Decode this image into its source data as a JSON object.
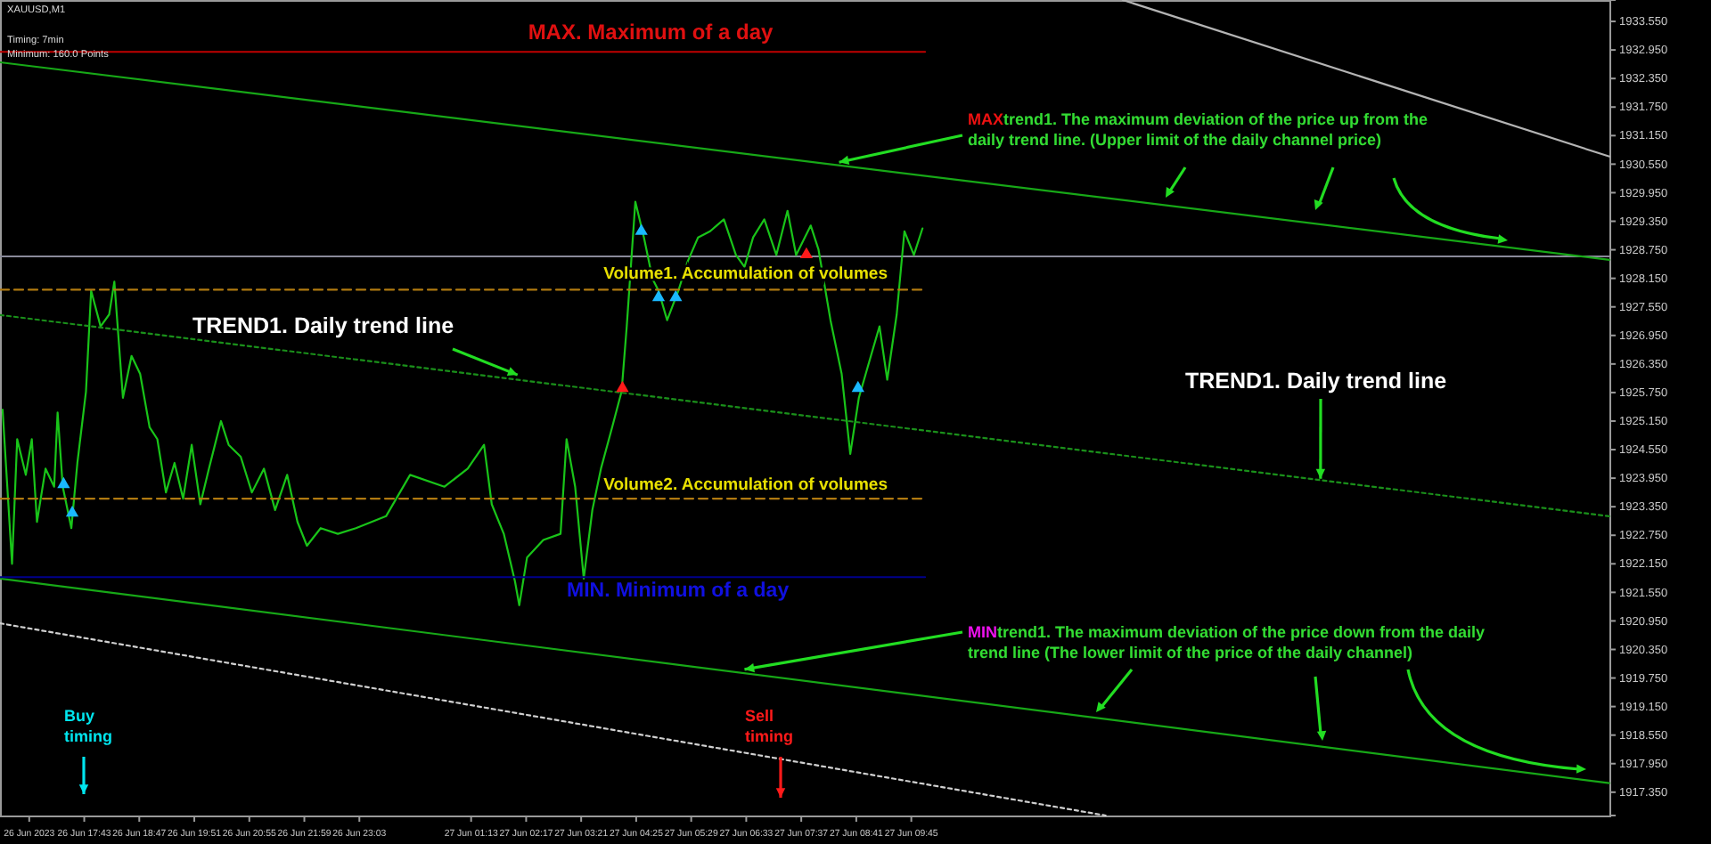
{
  "chart_data": {
    "type": "line",
    "legend": false,
    "grid": false,
    "marker": "none",
    "xlim": [
      "2023-06-26T16:05",
      "2023-06-27T23:17"
    ],
    "ylim": [
      1916.86,
      1934.0
    ],
    "xticks": [
      {
        "value": "2023-06-26T16:39",
        "label": "26 Jun 2023"
      },
      {
        "value": "2023-06-26T17:43",
        "label": "26 Jun 17:43"
      },
      {
        "value": "2023-06-26T18:47",
        "label": "26 Jun 18:47"
      },
      {
        "value": "2023-06-26T19:51",
        "label": "26 Jun 19:51"
      },
      {
        "value": "2023-06-26T20:55",
        "label": "26 Jun 20:55"
      },
      {
        "value": "2023-06-26T21:59",
        "label": "26 Jun 21:59"
      },
      {
        "value": "2023-06-26T23:03",
        "label": "26 Jun 23:03"
      },
      {
        "value": "2023-06-27T01:13",
        "label": "27 Jun 01:13"
      },
      {
        "value": "2023-06-27T02:17",
        "label": "27 Jun 02:17"
      },
      {
        "value": "2023-06-27T03:21",
        "label": "27 Jun 03:21"
      },
      {
        "value": "2023-06-27T04:25",
        "label": "27 Jun 04:25"
      },
      {
        "value": "2023-06-27T05:29",
        "label": "27 Jun 05:29"
      },
      {
        "value": "2023-06-27T06:33",
        "label": "27 Jun 06:33"
      },
      {
        "value": "2023-06-27T07:37",
        "label": "27 Jun 07:37"
      },
      {
        "value": "2023-06-27T08:41",
        "label": "27 Jun 08:41"
      },
      {
        "value": "2023-06-27T09:45",
        "label": "27 Jun 09:45"
      }
    ],
    "yticks": [
      {
        "value": 1933.55,
        "label": "1933.550"
      },
      {
        "value": 1932.95,
        "label": "1932.950"
      },
      {
        "value": 1932.35,
        "label": "1932.350"
      },
      {
        "value": 1931.75,
        "label": "1931.750"
      },
      {
        "value": 1931.15,
        "label": "1931.150"
      },
      {
        "value": 1930.55,
        "label": "1930.550"
      },
      {
        "value": 1929.95,
        "label": "1929.950"
      },
      {
        "value": 1929.35,
        "label": "1929.350"
      },
      {
        "value": 1928.75,
        "label": "1928.750"
      },
      {
        "value": 1928.15,
        "label": "1928.150"
      },
      {
        "value": 1927.55,
        "label": "1927.550"
      },
      {
        "value": 1926.95,
        "label": "1926.950"
      },
      {
        "value": 1926.35,
        "label": "1926.350"
      },
      {
        "value": 1925.75,
        "label": "1925.750"
      },
      {
        "value": 1925.15,
        "label": "1925.150"
      },
      {
        "value": 1924.55,
        "label": "1924.550"
      },
      {
        "value": 1923.95,
        "label": "1923.950"
      },
      {
        "value": 1923.35,
        "label": "1923.350"
      },
      {
        "value": 1922.75,
        "label": "1922.750"
      },
      {
        "value": 1922.15,
        "label": "1922.150"
      },
      {
        "value": 1921.55,
        "label": "1921.550"
      },
      {
        "value": 1920.95,
        "label": "1920.950"
      },
      {
        "value": 1920.35,
        "label": "1920.350"
      },
      {
        "value": 1919.75,
        "label": "1919.750"
      },
      {
        "value": 1919.15,
        "label": "1919.150"
      },
      {
        "value": 1918.55,
        "label": "1918.550"
      },
      {
        "value": 1917.95,
        "label": "1917.950"
      },
      {
        "value": 1917.35,
        "label": "1917.350"
      }
    ],
    "ref_lines": [
      {
        "axis": "y",
        "value": 1928.61,
        "color": "#8a8a9a"
      }
    ],
    "series": [
      {
        "color": "#19c419",
        "x": [
          "2023-06-26T16:08",
          "2023-06-26T16:19",
          "2023-06-26T16:25",
          "2023-06-26T16:35",
          "2023-06-26T16:42",
          "2023-06-26T16:48",
          "2023-06-26T16:58",
          "2023-06-26T17:08",
          "2023-06-26T17:12",
          "2023-06-26T17:18",
          "2023-06-26T17:28",
          "2023-06-26T17:35",
          "2023-06-26T17:45",
          "2023-06-26T17:51",
          "2023-06-26T18:02",
          "2023-06-26T18:12",
          "2023-06-26T18:18",
          "2023-06-26T18:28",
          "2023-06-26T18:38",
          "2023-06-26T18:48",
          "2023-06-26T18:59",
          "2023-06-26T19:08",
          "2023-06-26T19:18",
          "2023-06-26T19:28",
          "2023-06-26T19:38",
          "2023-06-26T19:48",
          "2023-06-26T19:58",
          "2023-06-26T20:08",
          "2023-06-26T20:22",
          "2023-06-26T20:31",
          "2023-06-26T20:45",
          "2023-06-26T20:58",
          "2023-06-26T21:12",
          "2023-06-26T21:25",
          "2023-06-26T21:39",
          "2023-06-26T21:51",
          "2023-06-26T22:02",
          "2023-06-26T22:18",
          "2023-06-26T22:38",
          "2023-06-26T22:59",
          "2023-06-26T23:34",
          "2023-06-27T00:02",
          "2023-06-27T00:42",
          "2023-06-27T01:09",
          "2023-06-27T01:28",
          "2023-06-27T01:37",
          "2023-06-27T01:51",
          "2023-06-27T02:04",
          "2023-06-27T02:09",
          "2023-06-27T02:18",
          "2023-06-27T02:37",
          "2023-06-27T02:57",
          "2023-06-27T03:04",
          "2023-06-27T03:14",
          "2023-06-27T03:24",
          "2023-06-27T03:34",
          "2023-06-27T03:44",
          "2023-06-27T03:57",
          "2023-06-27T04:08",
          "2023-06-27T04:14",
          "2023-06-27T04:24",
          "2023-06-27T04:34",
          "2023-06-27T04:44",
          "2023-06-27T04:51",
          "2023-06-27T05:01",
          "2023-06-27T05:14",
          "2023-06-27T05:25",
          "2023-06-27T05:37",
          "2023-06-27T05:51",
          "2023-06-27T06:07",
          "2023-06-27T06:21",
          "2023-06-27T06:31",
          "2023-06-27T06:41",
          "2023-06-27T06:54",
          "2023-06-27T07:08",
          "2023-06-27T07:21",
          "2023-06-27T07:31",
          "2023-06-27T07:48",
          "2023-06-27T07:57",
          "2023-06-27T08:11",
          "2023-06-27T08:24",
          "2023-06-27T08:34",
          "2023-06-27T08:44",
          "2023-06-27T08:58",
          "2023-06-27T09:08",
          "2023-06-27T09:17",
          "2023-06-27T09:28",
          "2023-06-27T09:37",
          "2023-06-27T09:48",
          "2023-06-27T09:58"
        ],
        "values": [
          1925.39,
          1922.15,
          1924.77,
          1924.02,
          1924.77,
          1923.03,
          1924.15,
          1923.77,
          1925.33,
          1923.77,
          1922.9,
          1924.27,
          1925.77,
          1927.89,
          1927.14,
          1927.39,
          1928.08,
          1925.64,
          1926.52,
          1926.14,
          1925.02,
          1924.77,
          1923.65,
          1924.27,
          1923.52,
          1924.65,
          1923.4,
          1924.15,
          1925.15,
          1924.65,
          1924.4,
          1923.65,
          1924.15,
          1923.28,
          1924.02,
          1923.03,
          1922.53,
          1922.9,
          1922.78,
          1922.9,
          1923.15,
          1924.02,
          1923.77,
          1924.15,
          1924.65,
          1923.4,
          1922.78,
          1921.78,
          1921.28,
          1922.28,
          1922.65,
          1922.78,
          1924.77,
          1923.77,
          1921.84,
          1923.28,
          1924.15,
          1925.02,
          1925.77,
          1927.14,
          1929.76,
          1929.01,
          1928.14,
          1927.89,
          1927.27,
          1927.89,
          1928.51,
          1929.01,
          1929.14,
          1929.39,
          1928.64,
          1928.39,
          1929.01,
          1929.39,
          1928.64,
          1929.57,
          1928.64,
          1929.26,
          1928.76,
          1927.27,
          1926.14,
          1924.46,
          1925.64,
          1926.52,
          1927.14,
          1926.02,
          1927.39,
          1929.14,
          1928.64,
          1929.2
        ]
      },
      {
        "color": "#17a817",
        "line_style": "solid",
        "x": [
          "2023-06-26T16:05",
          "2023-06-27T23:17"
        ],
        "values": [
          1932.69,
          1928.54
        ]
      },
      {
        "color": "#1a8f1a",
        "line_style": "dotted",
        "x": [
          "2023-06-26T16:05",
          "2023-06-27T23:17"
        ],
        "values": [
          1927.38,
          1923.15
        ]
      },
      {
        "color": "#17a817",
        "line_style": "solid",
        "x": [
          "2023-06-26T16:05",
          "2023-06-27T23:17"
        ],
        "values": [
          1921.84,
          1917.54
        ]
      },
      {
        "color": "#b4b4b4",
        "line_style": "solid",
        "x": [
          "2023-06-27T13:51",
          "2023-06-27T23:17"
        ],
        "values": [
          1934.0,
          1930.71
        ]
      },
      {
        "color": "#d0d0d0",
        "line_style": "dotted",
        "x": [
          "2023-06-26T16:05",
          "2023-06-27T13:31"
        ],
        "values": [
          1920.9,
          1916.86
        ]
      },
      {
        "type": "scatter",
        "marker": "triangle",
        "color": "#1ab8ff",
        "x": [
          "2023-06-26T17:19",
          "2023-06-26T17:29",
          "2023-06-27T04:31",
          "2023-06-27T04:51",
          "2023-06-27T05:11",
          "2023-06-27T08:43"
        ],
        "values": [
          1923.82,
          1923.22,
          1929.14,
          1927.75,
          1927.75,
          1925.84
        ]
      },
      {
        "type": "scatter",
        "marker": "triangle",
        "color": "#ff1a1a",
        "x": [
          "2023-06-27T04:09",
          "2023-06-27T07:43"
        ],
        "values": [
          1925.84,
          1928.65
        ]
      },
      {
        "name": "MAX. Maximum of a day",
        "color": "#c00000",
        "line_style": "solid",
        "x": [
          "2023-06-26T16:05",
          "2023-06-27T10:01"
        ],
        "values": [
          1932.91,
          1932.91
        ]
      },
      {
        "name": "Volume1. Accumulation of volumes",
        "color": "#b07a10",
        "line_style": "dashed",
        "x": [
          "2023-06-26T16:05",
          "2023-06-27T10:01"
        ],
        "values": [
          1927.91,
          1927.91
        ]
      },
      {
        "name": "Volume2. Accumulation of volumes",
        "color": "#b07a10",
        "line_style": "dashed",
        "x": [
          "2023-06-26T16:05",
          "2023-06-27T10:01"
        ],
        "values": [
          1923.52,
          1923.52
        ]
      },
      {
        "name": "MIN. Minimum of a day",
        "color": "#00008c",
        "line_style": "solid",
        "x": [
          "2023-06-26T16:05",
          "2023-06-27T10:01"
        ],
        "values": [
          1921.87,
          1921.87
        ]
      }
    ],
    "annotations": [
      "XAUUSD,M1",
      "Timing: 7min",
      "Minimum: 160.0 Points",
      {
        "text": "TREND1. Daily trend line",
        "x": "2023-06-27T02:07",
        "y": 1926.12
      },
      {
        "text": "TREND1. Daily trend line",
        "x": "2023-06-27T17:41",
        "y": 1923.94
      },
      {
        "text": "MAXtrend1. The maximum deviation of the price up from the daily trend line. (Upper limit of the daily channel price)",
        "x": "2023-06-27T08:21",
        "y": 1930.59
      },
      {
        "text": "MINtrend1. The maximum deviation of the price down from the daily trend line (The lower limit of the price of the daily channel)",
        "x": "2023-06-27T06:31",
        "y": 1919.93
      },
      "Buy timing",
      "Sell timing"
    ]
  }
}
